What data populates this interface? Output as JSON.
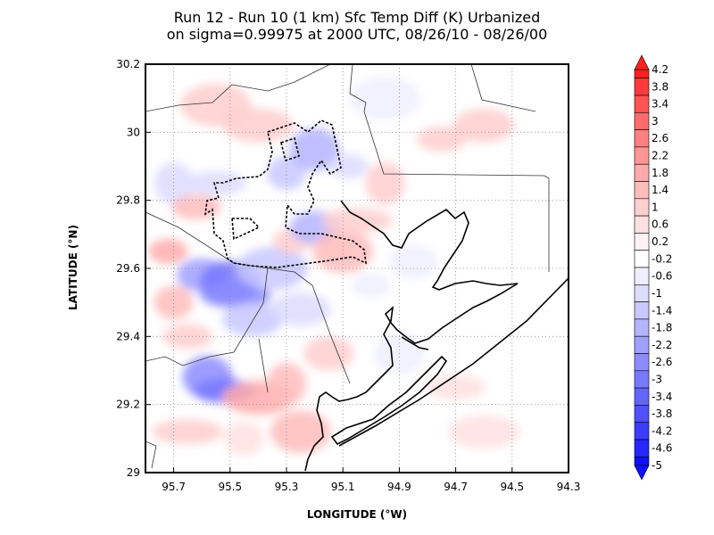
{
  "chart_data": {
    "type": "heatmap",
    "title": "Run 12 - Run 10 (1 km) Sfc Temp Diff (K) Urbanized",
    "subtitle": "on sigma=0.99975 at 2000 UTC, 08/26/10 - 08/26/00",
    "xlabel": "LONGITUDE (°W)",
    "ylabel": "LATITUDE (°N)",
    "xlim": [
      95.8,
      94.3
    ],
    "ylim": [
      29.0,
      30.2
    ],
    "x_ticks": [
      "95.7",
      "95.5",
      "95.3",
      "95.1",
      "94.9",
      "94.7",
      "94.5",
      "94.3"
    ],
    "x_tick_values": [
      95.7,
      95.5,
      95.3,
      95.1,
      94.9,
      94.7,
      94.5,
      94.3
    ],
    "y_ticks": [
      "29",
      "29.2",
      "29.4",
      "29.6",
      "29.8",
      "30",
      "30.2"
    ],
    "y_tick_values": [
      29.0,
      29.2,
      29.4,
      29.6,
      29.8,
      30.0,
      30.2
    ],
    "grid": true,
    "colorbar": {
      "placement": "right",
      "min": -5,
      "max": 4.2,
      "labels": [
        "4.2",
        "3.8",
        "3.4",
        "3",
        "2.6",
        "2.2",
        "1.8",
        "1.4",
        "1",
        "0.6",
        "0.2",
        "-0.2",
        "-0.6",
        "-1",
        "-1.4",
        "-1.8",
        "-2.2",
        "-2.6",
        "-3",
        "-3.4",
        "-3.8",
        "-4.2",
        "-4.6",
        "-5"
      ],
      "colors": [
        "#ff2020",
        "#ff3a3a",
        "#ff5252",
        "#ff6a6a",
        "#ff8080",
        "#ff9696",
        "#ffaaaa",
        "#ffbcbc",
        "#ffcece",
        "#ffe0e0",
        "#fff2f2",
        "#ffffff",
        "#eeeeff",
        "#dcdcff",
        "#c8c8ff",
        "#b4b4ff",
        "#a0a0ff",
        "#8c8cff",
        "#7878ff",
        "#6464ff",
        "#5050ff",
        "#3c3cff",
        "#2626ff",
        "#1010ff"
      ]
    },
    "blobs": [
      {
        "lon": 95.72,
        "lat": 29.65,
        "v": 1.8
      },
      {
        "lon": 95.6,
        "lat": 29.58,
        "v": -2.2
      },
      {
        "lon": 95.5,
        "lat": 29.56,
        "v": -3.0
      },
      {
        "lon": 95.48,
        "lat": 29.52,
        "v": -2.6
      },
      {
        "lon": 95.7,
        "lat": 29.5,
        "v": 1.4
      },
      {
        "lon": 95.58,
        "lat": 29.28,
        "v": -2.6
      },
      {
        "lon": 95.52,
        "lat": 29.24,
        "v": -3.0
      },
      {
        "lon": 95.4,
        "lat": 29.22,
        "v": 1.8
      },
      {
        "lon": 95.3,
        "lat": 29.26,
        "v": 1.4
      },
      {
        "lon": 95.65,
        "lat": 29.4,
        "v": 1.0
      },
      {
        "lon": 95.42,
        "lat": 29.45,
        "v": -1.4
      },
      {
        "lon": 95.35,
        "lat": 29.6,
        "v": -1.4
      },
      {
        "lon": 95.28,
        "lat": 29.68,
        "v": 1.0
      },
      {
        "lon": 95.2,
        "lat": 29.72,
        "v": -1.8
      },
      {
        "lon": 95.1,
        "lat": 29.65,
        "v": 1.4
      },
      {
        "lon": 95.05,
        "lat": 29.74,
        "v": 1.0
      },
      {
        "lon": 95.3,
        "lat": 29.88,
        "v": -1.4
      },
      {
        "lon": 95.2,
        "lat": 29.95,
        "v": -1.8
      },
      {
        "lon": 95.55,
        "lat": 29.85,
        "v": -1.0
      },
      {
        "lon": 95.4,
        "lat": 30.02,
        "v": 1.0
      },
      {
        "lon": 94.95,
        "lat": 29.85,
        "v": 1.0
      },
      {
        "lon": 94.75,
        "lat": 29.98,
        "v": 1.0
      },
      {
        "lon": 94.6,
        "lat": 30.02,
        "v": 1.0
      },
      {
        "lon": 94.95,
        "lat": 30.1,
        "v": -0.6
      },
      {
        "lon": 95.0,
        "lat": 29.55,
        "v": -0.6
      },
      {
        "lon": 95.15,
        "lat": 29.35,
        "v": 1.0
      },
      {
        "lon": 95.25,
        "lat": 29.12,
        "v": 1.4
      },
      {
        "lon": 95.65,
        "lat": 29.12,
        "v": 1.0
      },
      {
        "lon": 95.45,
        "lat": 29.1,
        "v": 0.6
      },
      {
        "lon": 94.9,
        "lat": 29.35,
        "v": -0.6
      },
      {
        "lon": 94.7,
        "lat": 29.25,
        "v": 0.6
      },
      {
        "lon": 94.6,
        "lat": 29.12,
        "v": 0.6
      },
      {
        "lon": 95.7,
        "lat": 29.85,
        "v": -1.0
      },
      {
        "lon": 95.62,
        "lat": 29.78,
        "v": 1.4
      },
      {
        "lon": 95.25,
        "lat": 29.48,
        "v": -1.0
      },
      {
        "lon": 95.55,
        "lat": 30.08,
        "v": 1.0
      },
      {
        "lon": 95.08,
        "lat": 29.9,
        "v": -1.0
      },
      {
        "lon": 94.85,
        "lat": 29.62,
        "v": -0.6
      }
    ]
  }
}
